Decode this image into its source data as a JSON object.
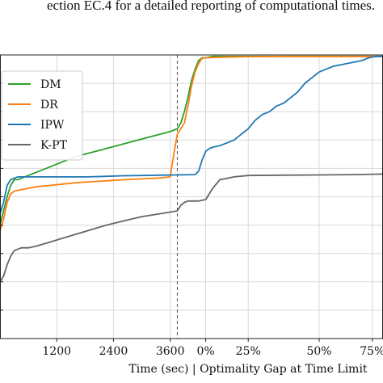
{
  "caption": "ection EC.4 for a detailed reporting of computational times.",
  "chart_data": {
    "type": "line",
    "title": "",
    "xlabel": "Time (sec) | Optimality Gap at Time Limit",
    "ylabel": "",
    "grid": true,
    "legend_position": "upper-left",
    "xlim": [
      0,
      108
    ],
    "ylim": [
      0,
      100
    ],
    "x_tick_positions": [
      16,
      32,
      48,
      58,
      70,
      90,
      105
    ],
    "x_tick_labels": [
      "1200",
      "2400",
      "3600",
      "0%",
      "25%",
      "50%",
      "75%"
    ],
    "x_segments": {
      "left": {
        "label": "Time (sec)",
        "unit": "sec",
        "data_max": 3600
      },
      "right": {
        "label": "Optimality Gap at Time Limit",
        "unit": "%"
      }
    },
    "divider_x": 50,
    "series": [
      {
        "name": "DM",
        "color": "#2ca02c",
        "x": [
          0,
          1,
          2,
          3,
          4,
          5,
          7,
          9,
          11,
          13,
          15,
          17,
          19,
          21,
          24,
          27,
          30,
          33,
          36,
          39,
          42,
          45,
          48,
          50,
          51,
          52,
          53,
          54,
          55,
          56,
          57,
          58,
          60,
          65,
          70,
          80,
          90,
          100,
          108
        ],
        "y": [
          40,
          45,
          50,
          54,
          56,
          56,
          57,
          58,
          59,
          60,
          61,
          62,
          63,
          64,
          65,
          66,
          67,
          68,
          69,
          70,
          71,
          72,
          73,
          74,
          76,
          80,
          85,
          91,
          95,
          98,
          99,
          99,
          99.5,
          99.5,
          99.5,
          99.5,
          99.5,
          99.5,
          99.5
        ]
      },
      {
        "name": "DR",
        "color": "#ff7f0e",
        "x": [
          0,
          1,
          2,
          3,
          4,
          6,
          8,
          10,
          14,
          18,
          22,
          26,
          30,
          35,
          40,
          45,
          48,
          49,
          50,
          51,
          52,
          53,
          54,
          55,
          56,
          57,
          58,
          62,
          70,
          80,
          90,
          100,
          108
        ],
        "y": [
          38,
          42,
          48,
          51,
          52,
          52.5,
          53,
          53.5,
          54,
          54.5,
          55,
          55.3,
          55.6,
          56,
          56.3,
          56.6,
          57,
          65,
          72,
          74,
          76,
          82,
          89,
          94,
          97,
          98.8,
          99,
          99.2,
          99.4,
          99.5,
          99.5,
          99.5,
          99.5
        ]
      },
      {
        "name": "IPW",
        "color": "#1f77b4",
        "x": [
          0,
          1,
          2,
          3,
          5,
          8,
          12,
          16,
          20,
          25,
          30,
          35,
          40,
          45,
          50,
          55,
          56,
          57,
          58,
          59,
          60,
          62,
          64,
          66,
          68,
          70,
          72,
          74,
          76,
          78,
          80,
          82,
          84,
          86,
          88,
          90,
          92,
          94,
          96,
          98,
          100,
          102,
          104,
          106,
          108
        ],
        "y": [
          44,
          48,
          54,
          56,
          57,
          57,
          57,
          57,
          57,
          57,
          57.2,
          57.4,
          57.5,
          57.6,
          57.7,
          57.8,
          59,
          63,
          66,
          67,
          67.5,
          68,
          69,
          70,
          72,
          74,
          77,
          79,
          80,
          82,
          83,
          85,
          87,
          90,
          92,
          94,
          95,
          96,
          96.5,
          97,
          97.5,
          98,
          99,
          99.5,
          99.5
        ]
      },
      {
        "name": "K-PT",
        "color": "#666666",
        "x": [
          0,
          1,
          2,
          3,
          4,
          6,
          8,
          10,
          14,
          18,
          22,
          26,
          30,
          35,
          40,
          45,
          50,
          51,
          52,
          53,
          56,
          58,
          60,
          62,
          64,
          66,
          70,
          80,
          90,
          100,
          108
        ],
        "y": [
          20,
          22,
          26,
          29,
          31,
          32,
          32,
          32.5,
          34,
          35.5,
          37,
          38.5,
          40,
          41.5,
          43,
          44,
          45,
          47,
          48,
          48.5,
          48.5,
          49,
          53,
          56,
          56.5,
          57,
          57.5,
          57.6,
          57.7,
          57.8,
          58
        ]
      }
    ]
  }
}
